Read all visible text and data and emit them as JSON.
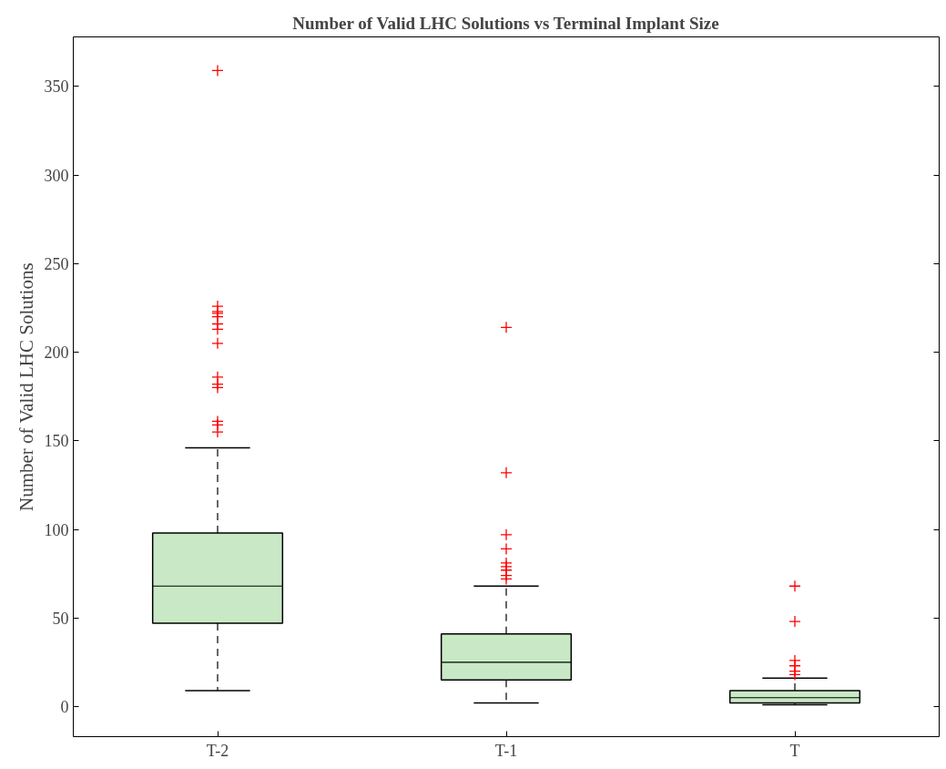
{
  "chart_data": {
    "type": "box",
    "title": "Number of Valid LHC Solutions vs Terminal Implant Size",
    "ylabel": "Number of Valid LHC Solutions",
    "categories": [
      "T-2",
      "T-1",
      "T"
    ],
    "color": "#c9e9c6",
    "boxes": [
      {
        "low": 9,
        "q1": 47,
        "median": 68,
        "q3": 98,
        "high": 146,
        "outliers": [
          359,
          226,
          223,
          222,
          220,
          216,
          213,
          205,
          186,
          182,
          180,
          161,
          159,
          155
        ]
      },
      {
        "low": 2,
        "q1": 15,
        "median": 25,
        "q3": 41,
        "high": 68,
        "outliers": [
          214,
          132,
          97,
          89,
          81,
          79,
          77,
          74,
          72
        ]
      },
      {
        "low": 1,
        "q1": 2,
        "median": 5,
        "q3": 9,
        "high": 16,
        "outliers": [
          68,
          48,
          26,
          23,
          20,
          18
        ]
      }
    ],
    "ylim": [
      -17,
      378
    ],
    "yticks": [
      0,
      50,
      100,
      150,
      200,
      250,
      300,
      350
    ],
    "grid": false
  }
}
